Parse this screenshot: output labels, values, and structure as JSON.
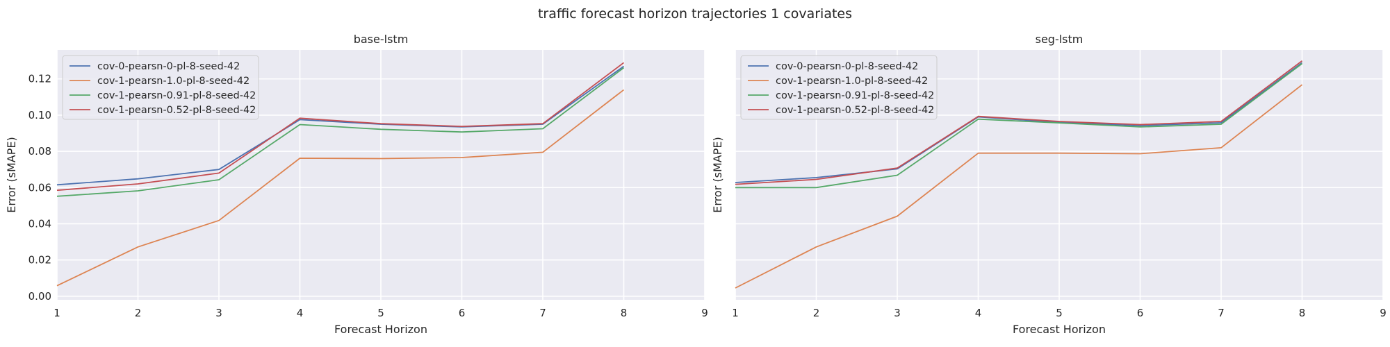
{
  "suptitle": "traffic forecast horizon trajectories 1 covariates",
  "chart_data": [
    {
      "type": "line",
      "title": "base-lstm",
      "xlabel": "Forecast Horizon",
      "ylabel": "Error (sMAPE)",
      "xlim": [
        1,
        9
      ],
      "ylim": [
        -0.002,
        0.136
      ],
      "xticks": [
        "1",
        "2",
        "3",
        "4",
        "5",
        "6",
        "7",
        "8",
        "9"
      ],
      "yticks": [
        "0.00",
        "0.02",
        "0.04",
        "0.06",
        "0.08",
        "0.10",
        "0.12"
      ],
      "grid": true,
      "legend_position": "top-left",
      "x": [
        1,
        2,
        3,
        4,
        5,
        6,
        7,
        8
      ],
      "series": [
        {
          "name": "cov-0-pearsn-0-pl-8-seed-42",
          "color": "#4c72b0",
          "values": [
            0.0615,
            0.0648,
            0.07,
            0.0975,
            0.095,
            0.0935,
            0.095,
            0.127
          ]
        },
        {
          "name": "cov-1-pearsn-1.0-pl-8-seed-42",
          "color": "#dd8452",
          "values": [
            0.0058,
            0.0272,
            0.0418,
            0.0762,
            0.076,
            0.0766,
            0.0795,
            0.114
          ]
        },
        {
          "name": "cov-1-pearsn-0.91-pl-8-seed-42",
          "color": "#55a868",
          "values": [
            0.0552,
            0.0582,
            0.0643,
            0.0948,
            0.0922,
            0.0907,
            0.0925,
            0.1262
          ]
        },
        {
          "name": "cov-1-pearsn-0.52-pl-8-seed-42",
          "color": "#c44e52",
          "values": [
            0.0585,
            0.062,
            0.068,
            0.0983,
            0.0953,
            0.0938,
            0.0953,
            0.129
          ]
        }
      ]
    },
    {
      "type": "line",
      "title": "seg-lstm",
      "xlabel": "Forecast Horizon",
      "ylabel": "Error (sMAPE)",
      "xlim": [
        1,
        9
      ],
      "ylim": [
        -0.002,
        0.136
      ],
      "xticks": [
        "1",
        "2",
        "3",
        "4",
        "5",
        "6",
        "7",
        "8",
        "9"
      ],
      "yticks": [],
      "grid": true,
      "legend_position": "top-left",
      "x": [
        1,
        2,
        3,
        4,
        5,
        6,
        7,
        8
      ],
      "series": [
        {
          "name": "cov-0-pearsn-0-pl-8-seed-42",
          "color": "#4c72b0",
          "values": [
            0.0628,
            0.0655,
            0.0703,
            0.099,
            0.096,
            0.0942,
            0.0958,
            0.129
          ]
        },
        {
          "name": "cov-1-pearsn-1.0-pl-8-seed-42",
          "color": "#dd8452",
          "values": [
            0.0045,
            0.0272,
            0.0442,
            0.079,
            0.079,
            0.0787,
            0.082,
            0.1168
          ]
        },
        {
          "name": "cov-1-pearsn-0.91-pl-8-seed-42",
          "color": "#55a868",
          "values": [
            0.06,
            0.06,
            0.0668,
            0.0978,
            0.0957,
            0.0935,
            0.095,
            0.1285
          ]
        },
        {
          "name": "cov-1-pearsn-0.52-pl-8-seed-42",
          "color": "#c44e52",
          "values": [
            0.0618,
            0.0645,
            0.0708,
            0.0993,
            0.0965,
            0.0948,
            0.0965,
            0.13
          ]
        }
      ]
    }
  ]
}
